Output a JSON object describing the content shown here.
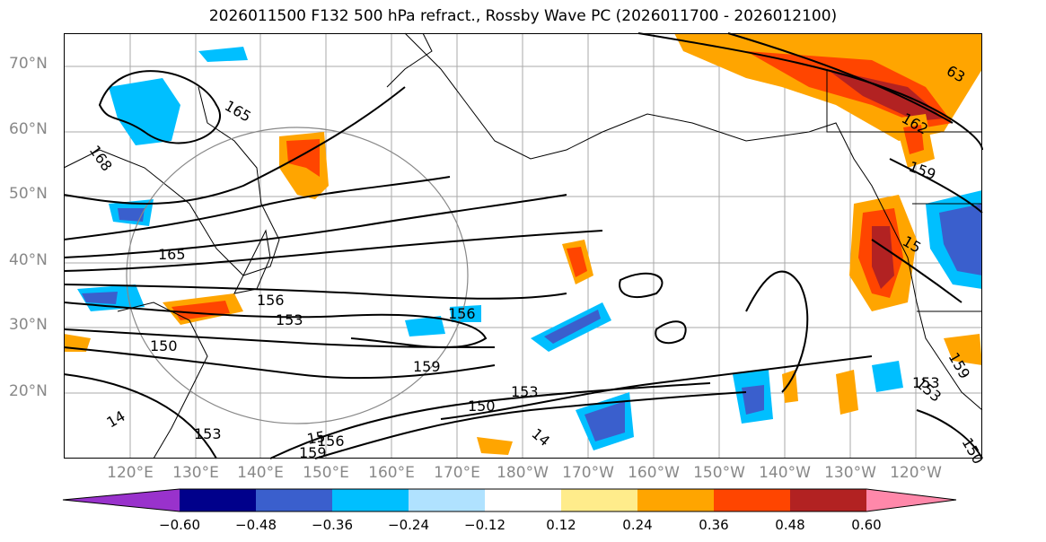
{
  "title": "2026011500 F132 500 hPa refract., Rossby Wave PC (2026011700 - 2026012100)",
  "lat_labels": [
    "70°N",
    "60°N",
    "50°N",
    "40°N",
    "30°N",
    "20°N"
  ],
  "lon_labels": [
    "120°E",
    "130°E",
    "140°E",
    "150°E",
    "160°E",
    "170°E",
    "180°W",
    "170°W",
    "160°W",
    "150°W",
    "140°W",
    "130°W",
    "120°W"
  ],
  "contour_labels": [
    "165",
    "168",
    "165",
    "153",
    "150",
    "156",
    "159",
    "150",
    "153",
    "153",
    "156",
    "159",
    "14",
    "14",
    "162",
    "159",
    "153",
    "156",
    "15",
    "153",
    "159",
    "150",
    "63",
    "15"
  ],
  "colorbar": {
    "ticks": [
      "−0.60",
      "−0.48",
      "−0.36",
      "−0.24",
      "−0.12",
      "0.12",
      "0.24",
      "0.36",
      "0.48",
      "0.60"
    ],
    "colors": [
      "#9932cc",
      "#00008b",
      "#3a5fcd",
      "#00bfff",
      "#b0e2ff",
      "#ffffff",
      "#ffec8b",
      "#ffa500",
      "#ff4500",
      "#b22222",
      "#ff88aa"
    ]
  },
  "palette": {
    "blue_dark": "#3a5fcd",
    "blue_mid": "#00bfff",
    "orange": "#ffa500",
    "red": "#ff4500",
    "darkred": "#b22222"
  }
}
